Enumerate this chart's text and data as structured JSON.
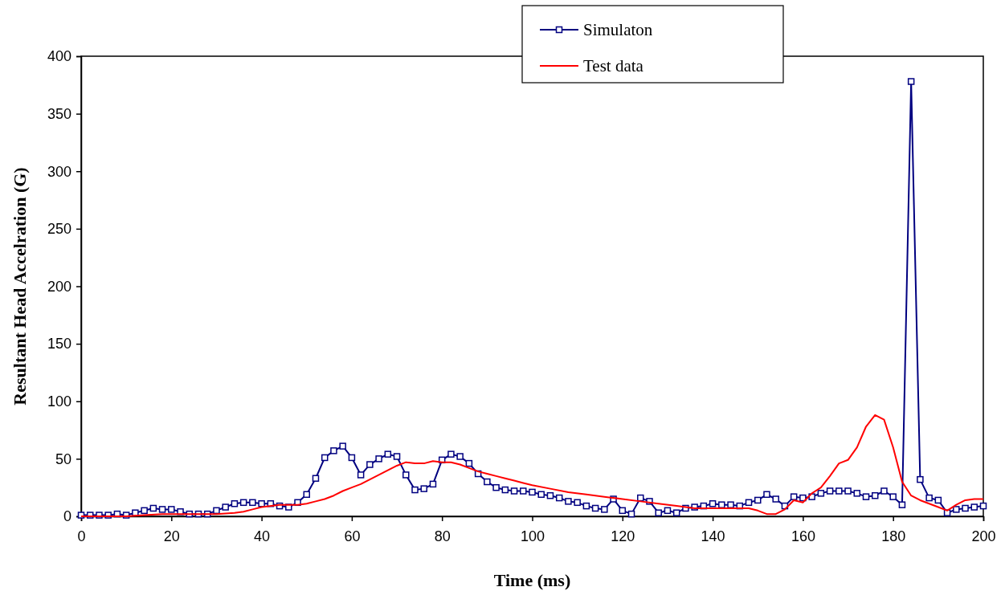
{
  "chart_data": {
    "type": "line",
    "xlabel": "Time (ms)",
    "ylabel": "Resultant Head Accelration (G)",
    "xlim": [
      0,
      200
    ],
    "xticks": [
      0,
      20,
      40,
      60,
      80,
      100,
      120,
      140,
      160,
      180,
      200
    ],
    "ylim": [
      0,
      400
    ],
    "yticks": [
      0,
      50,
      100,
      150,
      200,
      250,
      300,
      350,
      400
    ],
    "grid": false,
    "legend": "top right",
    "series": [
      {
        "name": "Simulaton",
        "color": "#000080",
        "marker": "square",
        "x": [
          0,
          2,
          4,
          6,
          8,
          10,
          12,
          14,
          16,
          18,
          20,
          22,
          24,
          26,
          28,
          30,
          32,
          34,
          36,
          38,
          40,
          42,
          44,
          46,
          48,
          50,
          52,
          54,
          56,
          58,
          60,
          62,
          64,
          66,
          68,
          70,
          72,
          74,
          76,
          78,
          80,
          82,
          84,
          86,
          88,
          90,
          92,
          94,
          96,
          98,
          100,
          102,
          104,
          106,
          108,
          110,
          112,
          114,
          116,
          118,
          120,
          122,
          124,
          126,
          128,
          130,
          132,
          134,
          136,
          138,
          140,
          142,
          144,
          146,
          148,
          150,
          152,
          154,
          156,
          158,
          160,
          162,
          164,
          166,
          168,
          170,
          172,
          174,
          176,
          178,
          180,
          182,
          184,
          186,
          188,
          190,
          192,
          194,
          196,
          198,
          200
        ],
        "values": [
          1,
          1,
          1,
          1,
          2,
          1,
          3,
          5,
          7,
          6,
          6,
          4,
          2,
          2,
          2,
          5,
          8,
          11,
          12,
          12,
          11,
          11,
          9,
          8,
          12,
          19,
          33,
          51,
          57,
          61,
          51,
          36,
          45,
          50,
          54,
          52,
          36,
          23,
          24,
          28,
          49,
          54,
          52,
          46,
          37,
          30,
          25,
          23,
          22,
          22,
          21,
          19,
          18,
          16,
          13,
          12,
          9,
          7,
          6,
          15,
          5,
          2,
          16,
          13,
          3,
          5,
          3,
          7,
          8,
          9,
          11,
          10,
          10,
          9,
          12,
          14,
          19,
          15,
          9,
          17,
          16,
          17,
          20,
          22,
          22,
          22,
          20,
          17,
          18,
          22,
          17,
          10,
          378,
          32,
          16,
          14,
          3,
          6,
          7,
          8,
          9
        ]
      },
      {
        "name": "Test data",
        "color": "#ff0000",
        "marker": "none",
        "x": [
          0,
          4,
          8,
          10,
          14,
          18,
          22,
          26,
          30,
          34,
          36,
          38,
          40,
          44,
          48,
          50,
          52,
          54,
          56,
          58,
          60,
          62,
          64,
          66,
          68,
          70,
          72,
          74,
          76,
          78,
          80,
          82,
          84,
          86,
          88,
          90,
          92,
          94,
          96,
          98,
          100,
          104,
          108,
          112,
          116,
          120,
          124,
          128,
          132,
          136,
          140,
          144,
          148,
          150,
          152,
          154,
          156,
          158,
          160,
          162,
          164,
          166,
          168,
          170,
          172,
          174,
          176,
          178,
          180,
          182,
          184,
          186,
          188,
          190,
          192,
          194,
          196,
          198,
          200
        ],
        "values": [
          0,
          0,
          0,
          0,
          1,
          2,
          2,
          2,
          2,
          3,
          4,
          6,
          8,
          10,
          10,
          11,
          13,
          15,
          18,
          22,
          25,
          28,
          32,
          36,
          40,
          44,
          47,
          46,
          46,
          48,
          47,
          47,
          45,
          42,
          39,
          37,
          35,
          33,
          31,
          29,
          27,
          24,
          21,
          19,
          17,
          15,
          13,
          11,
          9,
          7,
          7,
          7,
          7,
          5,
          2,
          2,
          6,
          14,
          12,
          20,
          25,
          35,
          46,
          49,
          60,
          78,
          88,
          84,
          60,
          30,
          18,
          14,
          11,
          8,
          5,
          10,
          14,
          15,
          15
        ]
      }
    ]
  }
}
